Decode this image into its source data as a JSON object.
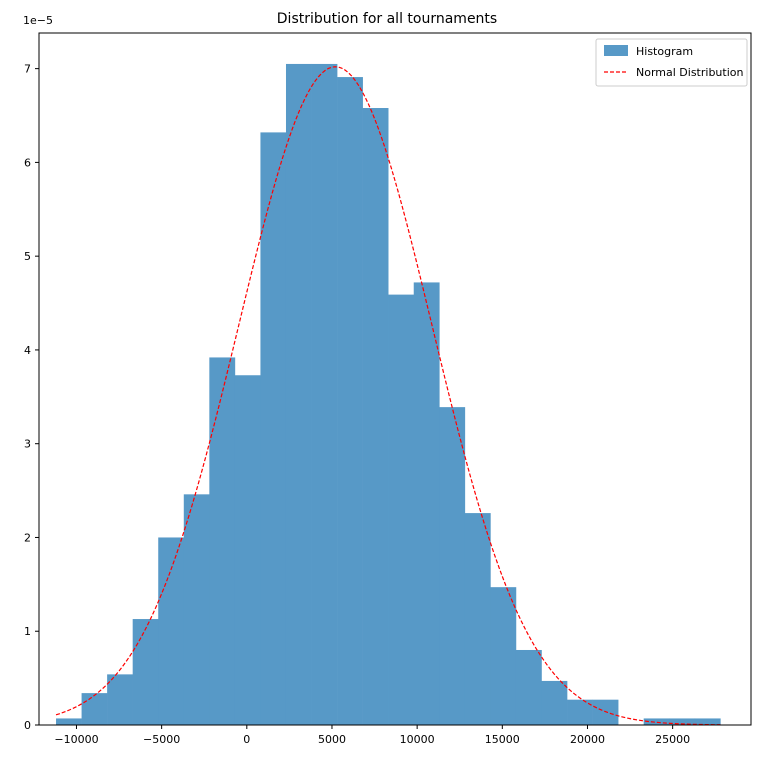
{
  "chart_data": {
    "type": "bar",
    "title": "Distribution for all tournaments",
    "xlabel": "",
    "ylabel": "",
    "y_offset_label": "1e−5",
    "xlim": [
      -12200,
      29600
    ],
    "ylim": [
      0,
      7.38
    ],
    "x_ticks": [
      -10000,
      -5000,
      0,
      5000,
      10000,
      15000,
      20000,
      25000
    ],
    "x_tick_labels": [
      "−10000",
      "−5000",
      "0",
      "5000",
      "10000",
      "15000",
      "20000",
      "25000"
    ],
    "y_ticks": [
      0,
      1,
      2,
      3,
      4,
      5,
      6,
      7
    ],
    "y_tick_labels": [
      "0",
      "1",
      "2",
      "3",
      "4",
      "5",
      "6",
      "7"
    ],
    "grid": false,
    "legend": {
      "placement": "top-right",
      "entries": [
        "Histogram",
        "Normal Distribution"
      ]
    },
    "colors": {
      "histogram": "#5799c7",
      "normal": "#ff0000"
    },
    "series": [
      {
        "name": "Histogram",
        "type": "histogram",
        "bins": [
          {
            "x0": -11200,
            "x1": -9700,
            "value": 0.07
          },
          {
            "x0": -9700,
            "x1": -8200,
            "value": 0.34
          },
          {
            "x0": -8200,
            "x1": -6700,
            "value": 0.54
          },
          {
            "x0": -6700,
            "x1": -5200,
            "value": 1.13
          },
          {
            "x0": -5200,
            "x1": -3700,
            "value": 2.0
          },
          {
            "x0": -3700,
            "x1": -2200,
            "value": 2.46
          },
          {
            "x0": -2200,
            "x1": -700,
            "value": 3.92
          },
          {
            "x0": -700,
            "x1": 800,
            "value": 3.73
          },
          {
            "x0": 800,
            "x1": 2300,
            "value": 6.32
          },
          {
            "x0": 2300,
            "x1": 3800,
            "value": 7.05
          },
          {
            "x0": 3800,
            "x1": 5300,
            "value": 7.05
          },
          {
            "x0": 5300,
            "x1": 6800,
            "value": 6.91
          },
          {
            "x0": 6800,
            "x1": 8300,
            "value": 6.58
          },
          {
            "x0": 8300,
            "x1": 9800,
            "value": 4.59
          },
          {
            "x0": 9800,
            "x1": 11300,
            "value": 4.72
          },
          {
            "x0": 11300,
            "x1": 12800,
            "value": 3.39
          },
          {
            "x0": 12800,
            "x1": 14300,
            "value": 2.26
          },
          {
            "x0": 14300,
            "x1": 15800,
            "value": 1.47
          },
          {
            "x0": 15800,
            "x1": 17300,
            "value": 0.8
          },
          {
            "x0": 17300,
            "x1": 18800,
            "value": 0.47
          },
          {
            "x0": 18800,
            "x1": 20300,
            "value": 0.27
          },
          {
            "x0": 20300,
            "x1": 21800,
            "value": 0.27
          },
          {
            "x0": 21800,
            "x1": 23300,
            "value": 0.0
          },
          {
            "x0": 23300,
            "x1": 24800,
            "value": 0.07
          },
          {
            "x0": 24800,
            "x1": 26300,
            "value": 0.07
          },
          {
            "x0": 26300,
            "x1": 27800,
            "value": 0.07
          }
        ]
      },
      {
        "name": "Normal Distribution",
        "type": "line",
        "style": "dashed",
        "mean": 5200,
        "std": 5680,
        "x_range": [
          -11200,
          27800
        ],
        "peak": 7.02
      }
    ]
  }
}
